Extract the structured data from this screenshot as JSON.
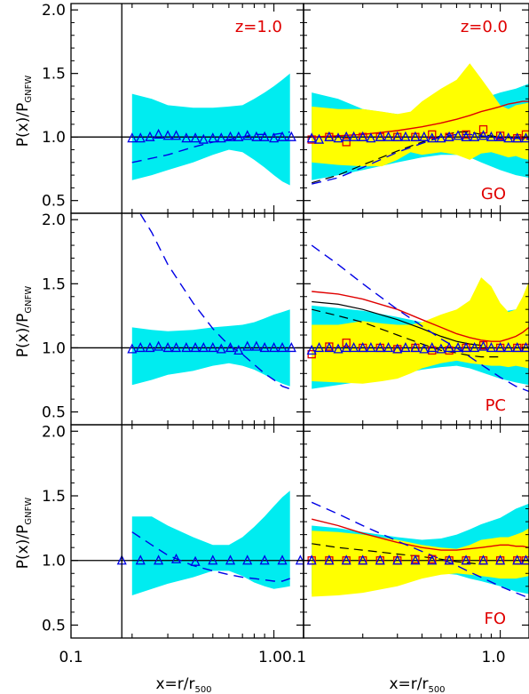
{
  "colors": {
    "cyan_band": "#00ecf0",
    "yellow_band": "#ffff00",
    "blue": "#0000e6",
    "red": "#e00000",
    "axis": "#000000"
  },
  "axes": {
    "ylabel": {
      "main": "P(x)/P",
      "sub": "GNFW"
    },
    "xlabel": {
      "main": "x=r/r",
      "sub": "500"
    },
    "xlim": [
      0.1,
      1.4
    ],
    "ylim": [
      0.4,
      2.05
    ],
    "xscale": "log",
    "yticks": [
      "0.5",
      "1.0",
      "1.5",
      "2.0"
    ],
    "left_xticks": [
      "0.1",
      "1.0"
    ],
    "right_xticks": [
      "0.1",
      "1.0"
    ],
    "left_xticks_combined": "1.00.1",
    "right_xtick_last": "1.0"
  },
  "chart_data": [
    {
      "type": "area",
      "row": 0,
      "col": 0,
      "annotation": "z=1.0",
      "vline_x": 0.178,
      "reference_y": 1.0,
      "cyan_band": {
        "x": [
          0.2,
          0.25,
          0.3,
          0.4,
          0.5,
          0.6,
          0.7,
          0.8,
          0.9,
          1.0,
          1.1,
          1.2
        ],
        "upper": [
          1.34,
          1.3,
          1.25,
          1.23,
          1.23,
          1.24,
          1.25,
          1.3,
          1.35,
          1.4,
          1.45,
          1.5
        ],
        "lower": [
          0.66,
          0.7,
          0.74,
          0.8,
          0.86,
          0.9,
          0.88,
          0.82,
          0.76,
          0.7,
          0.65,
          0.62
        ]
      },
      "blue_dashed": {
        "x": [
          0.2,
          0.3,
          0.4,
          0.5,
          0.6,
          0.7,
          0.8,
          0.9,
          1.0,
          1.1,
          1.2
        ],
        "y": [
          0.8,
          0.86,
          0.92,
          0.96,
          0.98,
          1.0,
          1.02,
          1.02,
          1.02,
          1.03,
          1.04
        ]
      },
      "triangles": {
        "x": [
          0.2,
          0.22,
          0.245,
          0.27,
          0.3,
          0.33,
          0.37,
          0.41,
          0.45,
          0.5,
          0.55,
          0.61,
          0.67,
          0.74,
          0.82,
          0.9,
          1.0,
          1.1,
          1.22
        ],
        "y": [
          0.99,
          0.99,
          1.0,
          1.02,
          1.01,
          1.01,
          0.99,
          0.99,
          0.98,
          0.99,
          0.99,
          1.0,
          1.0,
          1.01,
          1.0,
          1.0,
          0.99,
          1.0,
          1.0
        ]
      }
    },
    {
      "type": "area",
      "row": 0,
      "col": 1,
      "annotation": "z=0.0",
      "label": "GO",
      "vline_x": 0.1,
      "reference_y": 1.0,
      "cyan_band": {
        "x": [
          0.11,
          0.15,
          0.2,
          0.3,
          0.4,
          0.5,
          0.6,
          0.7,
          0.8,
          1.0,
          1.2,
          1.4
        ],
        "upper": [
          1.35,
          1.3,
          1.22,
          1.18,
          1.17,
          1.19,
          1.22,
          1.26,
          1.3,
          1.35,
          1.38,
          1.42
        ],
        "lower": [
          0.66,
          0.7,
          0.74,
          0.8,
          0.84,
          0.86,
          0.86,
          0.84,
          0.8,
          0.74,
          0.7,
          0.68
        ]
      },
      "yellow_band": {
        "x": [
          0.11,
          0.15,
          0.2,
          0.25,
          0.3,
          0.35,
          0.4,
          0.5,
          0.6,
          0.7,
          0.8,
          0.9,
          1.0,
          1.1,
          1.2,
          1.3,
          1.4
        ],
        "upper": [
          1.24,
          1.22,
          1.22,
          1.2,
          1.18,
          1.2,
          1.28,
          1.38,
          1.45,
          1.58,
          1.46,
          1.35,
          1.25,
          1.22,
          1.25,
          1.26,
          1.27
        ],
        "lower": [
          0.8,
          0.78,
          0.77,
          0.77,
          0.82,
          0.88,
          0.86,
          0.88,
          0.86,
          0.82,
          0.87,
          0.88,
          0.86,
          0.84,
          0.85,
          0.83,
          0.82
        ]
      },
      "red_solid": {
        "x": [
          0.11,
          0.15,
          0.2,
          0.3,
          0.4,
          0.5,
          0.6,
          0.7,
          0.8,
          0.9,
          1.0,
          1.1,
          1.2,
          1.3,
          1.4
        ],
        "y": [
          1.0,
          1.01,
          1.02,
          1.05,
          1.08,
          1.11,
          1.14,
          1.17,
          1.2,
          1.22,
          1.24,
          1.26,
          1.27,
          1.28,
          1.28
        ]
      },
      "blue_dashed": {
        "x": [
          0.11,
          0.15,
          0.2,
          0.3,
          0.4,
          0.5,
          0.6,
          0.7,
          0.8,
          1.0,
          1.2,
          1.4
        ],
        "y": [
          0.63,
          0.68,
          0.76,
          0.88,
          0.95,
          1.0,
          1.02,
          1.02,
          1.01,
          0.99,
          0.99,
          0.98
        ]
      },
      "black_dashed": {
        "x": [
          0.11,
          0.15,
          0.2,
          0.3,
          0.4,
          0.5,
          0.6,
          0.7,
          0.8,
          1.0,
          1.2,
          1.4
        ],
        "y": [
          0.64,
          0.7,
          0.78,
          0.89,
          0.96,
          1.01,
          1.04,
          1.04,
          1.02,
          1.0,
          0.99,
          0.98
        ]
      },
      "triangles": {
        "x": [
          0.11,
          0.12,
          0.135,
          0.15,
          0.165,
          0.18,
          0.2,
          0.22,
          0.245,
          0.27,
          0.3,
          0.33,
          0.37,
          0.41,
          0.45,
          0.5,
          0.55,
          0.61,
          0.67,
          0.74,
          0.82,
          0.9,
          1.0,
          1.1,
          1.22,
          1.35
        ],
        "y": [
          0.99,
          0.98,
          1.0,
          0.99,
          1.0,
          1.0,
          1.0,
          0.99,
          1.0,
          1.0,
          1.0,
          1.0,
          1.0,
          1.0,
          0.99,
          0.99,
          1.0,
          1.01,
          1.0,
          1.0,
          1.01,
          1.0,
          1.0,
          0.99,
          0.99,
          0.99
        ]
      },
      "squares": {
        "x": [
          0.11,
          0.135,
          0.165,
          0.2,
          0.245,
          0.3,
          0.37,
          0.45,
          0.55,
          0.67,
          0.82,
          1.0,
          1.22,
          1.35
        ],
        "y": [
          0.98,
          1.0,
          0.96,
          1.0,
          1.0,
          1.0,
          1.0,
          1.02,
          1.0,
          1.02,
          1.06,
          1.01,
          0.99,
          1.02
        ]
      }
    },
    {
      "type": "area",
      "row": 1,
      "col": 0,
      "vline_x": 0.178,
      "reference_y": 1.0,
      "cyan_band": {
        "x": [
          0.2,
          0.25,
          0.3,
          0.4,
          0.5,
          0.6,
          0.7,
          0.8,
          0.9,
          1.0,
          1.1,
          1.2
        ],
        "upper": [
          1.16,
          1.14,
          1.13,
          1.14,
          1.16,
          1.17,
          1.18,
          1.2,
          1.23,
          1.26,
          1.28,
          1.3
        ],
        "lower": [
          0.71,
          0.75,
          0.79,
          0.82,
          0.86,
          0.88,
          0.86,
          0.83,
          0.79,
          0.75,
          0.72,
          0.7
        ]
      },
      "blue_dashed": {
        "x": [
          0.2,
          0.25,
          0.3,
          0.4,
          0.5,
          0.6,
          0.7,
          0.8,
          0.9,
          1.0,
          1.1,
          1.2
        ],
        "y": [
          2.15,
          1.9,
          1.65,
          1.35,
          1.15,
          1.02,
          0.95,
          0.87,
          0.8,
          0.75,
          0.7,
          0.68
        ]
      },
      "triangles": {
        "x": [
          0.2,
          0.22,
          0.245,
          0.27,
          0.3,
          0.33,
          0.37,
          0.41,
          0.45,
          0.5,
          0.55,
          0.61,
          0.67,
          0.74,
          0.82,
          0.9,
          1.0,
          1.1,
          1.22
        ],
        "y": [
          0.99,
          1.0,
          1.0,
          1.01,
          1.0,
          1.0,
          1.0,
          1.0,
          1.0,
          1.0,
          0.99,
          1.0,
          0.98,
          1.01,
          1.01,
          1.0,
          1.0,
          1.0,
          1.0
        ]
      }
    },
    {
      "type": "area",
      "row": 1,
      "col": 1,
      "label": "PC",
      "vline_x": 0.1,
      "reference_y": 1.0,
      "cyan_band": {
        "x": [
          0.11,
          0.15,
          0.2,
          0.3,
          0.4,
          0.5,
          0.6,
          0.7,
          0.8,
          1.0,
          1.2,
          1.4
        ],
        "upper": [
          1.33,
          1.31,
          1.29,
          1.24,
          1.2,
          1.2,
          1.22,
          1.24,
          1.26,
          1.28,
          1.3,
          1.32
        ],
        "lower": [
          0.68,
          0.71,
          0.74,
          0.79,
          0.83,
          0.85,
          0.86,
          0.84,
          0.81,
          0.76,
          0.73,
          0.71
        ]
      },
      "yellow_band": {
        "x": [
          0.11,
          0.15,
          0.2,
          0.25,
          0.3,
          0.35,
          0.4,
          0.5,
          0.6,
          0.7,
          0.8,
          0.9,
          1.0,
          1.1,
          1.2,
          1.3,
          1.4
        ],
        "upper": [
          1.18,
          1.18,
          1.21,
          1.19,
          1.18,
          1.18,
          1.2,
          1.26,
          1.3,
          1.37,
          1.55,
          1.48,
          1.35,
          1.28,
          1.3,
          1.4,
          1.52
        ],
        "lower": [
          0.74,
          0.73,
          0.72,
          0.74,
          0.76,
          0.8,
          0.84,
          0.88,
          0.9,
          0.88,
          0.87,
          0.86,
          0.86,
          0.85,
          0.86,
          0.85,
          0.84
        ]
      },
      "red_solid": {
        "x": [
          0.11,
          0.15,
          0.2,
          0.3,
          0.4,
          0.5,
          0.6,
          0.7,
          0.8,
          0.9,
          1.0,
          1.1,
          1.2,
          1.3,
          1.4
        ],
        "y": [
          1.44,
          1.42,
          1.38,
          1.3,
          1.22,
          1.16,
          1.11,
          1.08,
          1.06,
          1.05,
          1.05,
          1.07,
          1.09,
          1.12,
          1.16
        ]
      },
      "black_solid": {
        "x": [
          0.11,
          0.15,
          0.2,
          0.3,
          0.4,
          0.5,
          0.6,
          0.7,
          0.8
        ],
        "y": [
          1.36,
          1.34,
          1.3,
          1.22,
          1.15,
          1.09,
          1.05,
          1.03,
          1.02
        ]
      },
      "blue_dashed": {
        "x": [
          0.11,
          0.15,
          0.2,
          0.3,
          0.4,
          0.5,
          0.6,
          0.7,
          0.8,
          1.0,
          1.2,
          1.4
        ],
        "y": [
          1.8,
          1.65,
          1.5,
          1.3,
          1.17,
          1.07,
          1.0,
          0.93,
          0.87,
          0.77,
          0.7,
          0.66
        ]
      },
      "black_dashed": {
        "x": [
          0.11,
          0.15,
          0.2,
          0.3,
          0.4,
          0.5,
          0.6,
          0.7,
          0.8,
          1.0
        ],
        "y": [
          1.3,
          1.25,
          1.2,
          1.1,
          1.03,
          0.98,
          0.96,
          0.94,
          0.93,
          0.93
        ]
      },
      "triangles": {
        "x": [
          0.11,
          0.12,
          0.135,
          0.15,
          0.165,
          0.18,
          0.2,
          0.22,
          0.245,
          0.27,
          0.3,
          0.33,
          0.37,
          0.41,
          0.45,
          0.5,
          0.55,
          0.61,
          0.67,
          0.74,
          0.82,
          0.9,
          1.0,
          1.1,
          1.22,
          1.35
        ],
        "y": [
          0.98,
          1.0,
          1.0,
          0.99,
          1.0,
          1.0,
          1.0,
          1.0,
          1.0,
          1.0,
          0.99,
          1.0,
          1.0,
          0.99,
          1.0,
          0.99,
          1.0,
          1.0,
          1.0,
          1.0,
          1.01,
          1.0,
          1.0,
          1.0,
          1.0,
          1.0
        ]
      },
      "squares": {
        "x": [
          0.11,
          0.135,
          0.165,
          0.2,
          0.245,
          0.3,
          0.37,
          0.45,
          0.55,
          0.67,
          0.82,
          1.0,
          1.22,
          1.35
        ],
        "y": [
          0.95,
          1.01,
          1.04,
          1.0,
          1.0,
          0.99,
          1.0,
          0.98,
          0.98,
          1.0,
          1.02,
          1.0,
          1.0,
          1.0
        ]
      }
    },
    {
      "type": "area",
      "row": 2,
      "col": 0,
      "vline_x": 0.178,
      "reference_y": 1.0,
      "cyan_band": {
        "x": [
          0.2,
          0.25,
          0.3,
          0.4,
          0.5,
          0.6,
          0.7,
          0.8,
          0.9,
          1.0,
          1.1,
          1.2
        ],
        "upper": [
          1.34,
          1.34,
          1.27,
          1.18,
          1.12,
          1.12,
          1.18,
          1.26,
          1.34,
          1.42,
          1.49,
          1.54
        ],
        "lower": [
          0.73,
          0.78,
          0.82,
          0.87,
          0.92,
          0.92,
          0.88,
          0.83,
          0.8,
          0.78,
          0.79,
          0.8
        ]
      },
      "blue_dashed": {
        "x": [
          0.2,
          0.25,
          0.3,
          0.4,
          0.5,
          0.6,
          0.7,
          0.8,
          0.9,
          1.0,
          1.1,
          1.2
        ],
        "y": [
          1.22,
          1.12,
          1.04,
          0.96,
          0.92,
          0.89,
          0.87,
          0.86,
          0.85,
          0.84,
          0.84,
          0.86
        ]
      },
      "triangles": {
        "x": [
          0.178,
          0.22,
          0.27,
          0.33,
          0.41,
          0.5,
          0.61,
          0.74,
          0.9,
          1.1,
          1.35
        ],
        "y": [
          1.0,
          1.0,
          1.0,
          1.01,
          0.99,
          1.0,
          1.0,
          1.0,
          1.0,
          1.0,
          1.0
        ]
      }
    },
    {
      "type": "area",
      "row": 2,
      "col": 1,
      "label": "FO",
      "vline_x": 0.1,
      "reference_y": 1.0,
      "cyan_band": {
        "x": [
          0.11,
          0.15,
          0.2,
          0.3,
          0.4,
          0.5,
          0.6,
          0.7,
          0.8,
          1.0,
          1.2,
          1.4
        ],
        "upper": [
          1.27,
          1.25,
          1.22,
          1.18,
          1.16,
          1.17,
          1.2,
          1.24,
          1.28,
          1.33,
          1.4,
          1.44
        ],
        "lower": [
          0.74,
          0.76,
          0.79,
          0.84,
          0.88,
          0.9,
          0.89,
          0.86,
          0.84,
          0.8,
          0.76,
          0.74
        ]
      },
      "yellow_band": {
        "x": [
          0.11,
          0.15,
          0.2,
          0.3,
          0.4,
          0.5,
          0.6,
          0.7,
          0.8,
          0.9,
          1.0,
          1.1,
          1.2,
          1.3,
          1.4
        ],
        "upper": [
          1.23,
          1.22,
          1.2,
          1.16,
          1.12,
          1.1,
          1.09,
          1.12,
          1.16,
          1.17,
          1.18,
          1.18,
          1.2,
          1.22,
          1.25
        ],
        "lower": [
          0.72,
          0.73,
          0.75,
          0.8,
          0.86,
          0.89,
          0.9,
          0.89,
          0.88,
          0.87,
          0.86,
          0.86,
          0.86,
          0.87,
          0.88
        ]
      },
      "red_solid": {
        "x": [
          0.11,
          0.15,
          0.2,
          0.3,
          0.4,
          0.5,
          0.6,
          0.7,
          0.8,
          0.9,
          1.0,
          1.1,
          1.2,
          1.3,
          1.4
        ],
        "y": [
          1.32,
          1.27,
          1.21,
          1.14,
          1.1,
          1.08,
          1.08,
          1.09,
          1.1,
          1.11,
          1.12,
          1.12,
          1.11,
          1.11,
          1.1
        ]
      },
      "blue_dashed": {
        "x": [
          0.11,
          0.15,
          0.2,
          0.3,
          0.4,
          0.5,
          0.6,
          0.7,
          0.8,
          1.0,
          1.2,
          1.4
        ],
        "y": [
          1.45,
          1.36,
          1.27,
          1.15,
          1.07,
          1.01,
          0.96,
          0.91,
          0.87,
          0.8,
          0.75,
          0.71
        ]
      },
      "black_dashed": {
        "x": [
          0.11,
          0.15,
          0.2,
          0.3,
          0.4,
          0.5,
          0.6,
          0.7,
          0.8
        ],
        "y": [
          1.13,
          1.1,
          1.08,
          1.05,
          1.03,
          1.01,
          0.99,
          0.98,
          0.97
        ]
      },
      "triangles": {
        "x": [
          0.11,
          0.135,
          0.165,
          0.2,
          0.245,
          0.3,
          0.37,
          0.45,
          0.55,
          0.67,
          0.82,
          1.0,
          1.22,
          1.35
        ],
        "y": [
          1.0,
          1.0,
          1.0,
          1.0,
          1.0,
          1.0,
          1.0,
          1.0,
          1.0,
          1.0,
          1.0,
          1.0,
          1.0,
          1.0
        ]
      },
      "squares": {
        "x": [
          0.11,
          0.135,
          0.165,
          0.2,
          0.245,
          0.3,
          0.37,
          0.45,
          0.55,
          0.67,
          0.82,
          1.0,
          1.22,
          1.35
        ],
        "y": [
          1.0,
          1.0,
          1.0,
          1.0,
          1.0,
          1.0,
          1.01,
          1.01,
          1.0,
          1.0,
          1.0,
          1.0,
          1.0,
          1.0
        ]
      }
    }
  ]
}
